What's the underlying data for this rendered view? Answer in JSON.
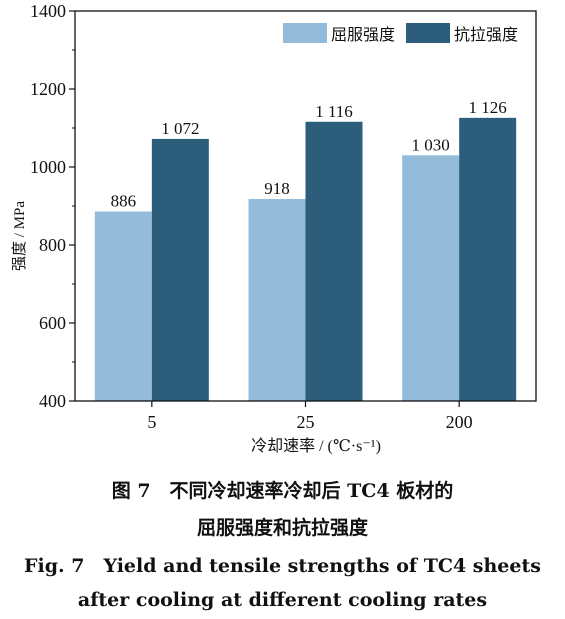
{
  "chart_data": {
    "type": "bar",
    "categories": [
      "5",
      "25",
      "200"
    ],
    "series": [
      {
        "name": "屈服强度",
        "color": "#94bbd9",
        "values": [
          886,
          918,
          1030
        ],
        "labels": [
          "886",
          "918",
          "1 030"
        ]
      },
      {
        "name": "抗拉强度",
        "color": "#2c5e7b",
        "values": [
          1072,
          1116,
          1126
        ],
        "labels": [
          "1 072",
          "1 116",
          "1 126"
        ]
      }
    ],
    "xlabel": "冷却速率 / (℃·s⁻¹)",
    "ylabel": "强度 / MPa",
    "ylim": [
      400,
      1400
    ],
    "yticks": [
      400,
      600,
      800,
      1000,
      1200,
      1400
    ],
    "legend_position": "top-right",
    "grid": false
  },
  "caption": {
    "cn_line1": "图 7　不同冷却速率冷却后 TC4 板材的",
    "cn_line2": "屈服强度和抗拉强度",
    "en_line1": "Fig. 7　Yield and tensile strengths of TC4 sheets",
    "en_line2": "after cooling at different cooling rates"
  }
}
